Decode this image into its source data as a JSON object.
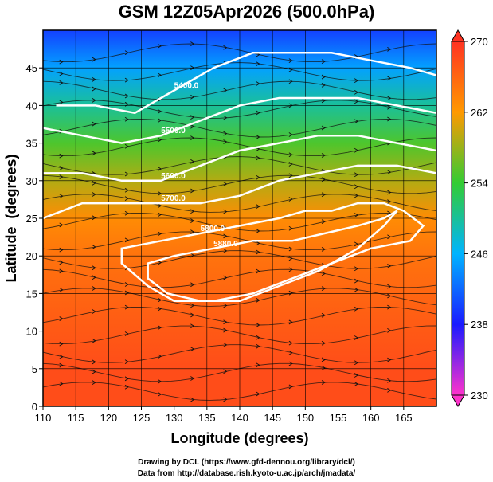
{
  "chart_data": {
    "type": "heatmap",
    "title": "GSM 12Z05Apr2026 (500.0hPa)",
    "xlabel": "Longitude (degrees)",
    "ylabel": "Latitude  (degrees)",
    "xlim": [
      110,
      170
    ],
    "ylim": [
      0,
      50
    ],
    "x_ticks": [
      "110",
      "115",
      "120",
      "125",
      "130",
      "135",
      "140",
      "145",
      "150",
      "155",
      "160",
      "165"
    ],
    "y_ticks": [
      "0",
      "5",
      "10",
      "15",
      "20",
      "25",
      "30",
      "35",
      "40",
      "45"
    ],
    "grid": true,
    "colorbar": {
      "placement": "right",
      "range": [
        230,
        270
      ],
      "ticks": [
        "270",
        "262",
        "254",
        "246",
        "238",
        "230"
      ]
    },
    "temperature_field_K": {
      "latitudes": [
        0,
        5,
        10,
        15,
        20,
        25,
        30,
        35,
        40,
        45,
        50
      ],
      "values": [
        268,
        268,
        267,
        266,
        265,
        263,
        259,
        255,
        250,
        245,
        240
      ]
    },
    "height_contours": [
      {
        "label": "5400.0",
        "lon": [
          112,
          118,
          124,
          130,
          136,
          142,
          148,
          154,
          160,
          166,
          170
        ],
        "lat": [
          40,
          40,
          39,
          42,
          45,
          47,
          47,
          47,
          46,
          45,
          44
        ]
      },
      {
        "label": "5500.0",
        "lon": [
          110,
          116,
          122,
          128,
          134,
          140,
          146,
          152,
          158,
          164,
          170
        ],
        "lat": [
          37,
          36,
          35,
          36,
          38,
          40,
          41,
          41,
          41,
          40,
          39
        ]
      },
      {
        "label": "5600.0",
        "lon": [
          110,
          116,
          122,
          128,
          134,
          140,
          146,
          152,
          158,
          164,
          170
        ],
        "lat": [
          31,
          31,
          30,
          30,
          32,
          34,
          35,
          36,
          36,
          35,
          34
        ]
      },
      {
        "label": "5700.0",
        "lon": [
          110,
          116,
          122,
          128,
          134,
          140,
          146,
          152,
          158,
          164,
          170
        ],
        "lat": [
          25,
          27,
          27,
          27,
          27,
          28,
          30,
          31,
          32,
          32,
          31
        ]
      },
      {
        "label": "5800.0",
        "lon": [
          122,
          128,
          134,
          140,
          146,
          150,
          154,
          158,
          162,
          165,
          168,
          166,
          160,
          154,
          148,
          142,
          136,
          130,
          126,
          122
        ],
        "lat": [
          21,
          22,
          23,
          24,
          25,
          26,
          26,
          27,
          27,
          26,
          24,
          22,
          21,
          19,
          17,
          15,
          14,
          14,
          16,
          19
        ]
      },
      {
        "label": "5880.0",
        "lon": [
          126,
          130,
          136,
          142,
          148,
          153,
          158,
          162,
          164,
          162,
          158,
          152,
          146,
          140,
          134,
          129,
          126
        ],
        "lat": [
          19,
          20,
          21,
          22,
          22,
          23,
          24,
          25,
          26,
          24,
          21,
          18,
          16,
          14,
          14,
          15,
          17
        ]
      }
    ],
    "annotations": [
      "5400.0",
      "5500.0",
      "5600.0",
      "5700.0",
      "5800.0",
      "5880.0"
    ]
  },
  "credits": {
    "drawing": "Drawing by DCL (https://www.gfd-dennou.org/library/dcl/)",
    "data": "Data from http://database.rish.kyoto-u.ac.jp/arch/jmadata/"
  }
}
